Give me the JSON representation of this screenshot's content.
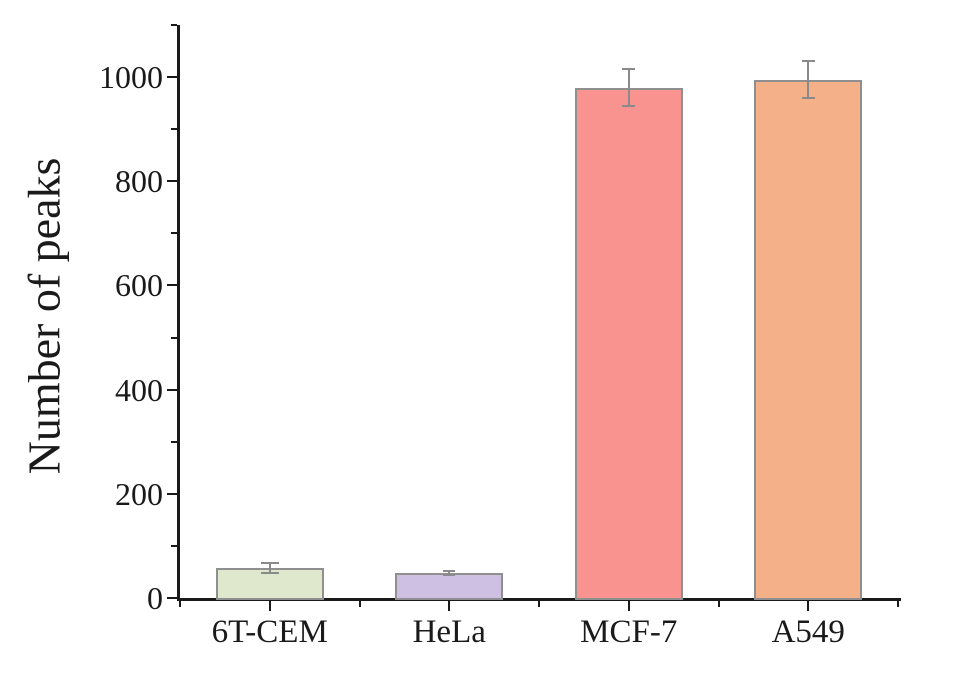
{
  "chart_data": {
    "type": "bar",
    "title": "",
    "xlabel": "",
    "ylabel": "Number of peaks",
    "categories": [
      "6T-CEM",
      "HeLa",
      "MCF-7",
      "A549"
    ],
    "values": [
      58,
      48,
      980,
      995
    ],
    "errors": [
      10,
      3,
      35,
      35
    ],
    "bar_colors": [
      "#dfe8cd",
      "#cec0e3",
      "#f9938f",
      "#f3b089"
    ],
    "bar_border_color": "#8f8f8f",
    "error_bar_color": "#8a8a8a",
    "error_cap_widths": [
      18,
      12,
      13,
      13
    ],
    "axis_color": "#1a1a1a",
    "background": "#ffffff",
    "ylim": [
      0,
      1100
    ],
    "ytick_major_step": 200,
    "ytick_minor_step": 100,
    "yticks": [
      0,
      200,
      400,
      600,
      800,
      1000
    ],
    "grid": false,
    "legend": "none",
    "bar_width_fraction": 0.6
  }
}
